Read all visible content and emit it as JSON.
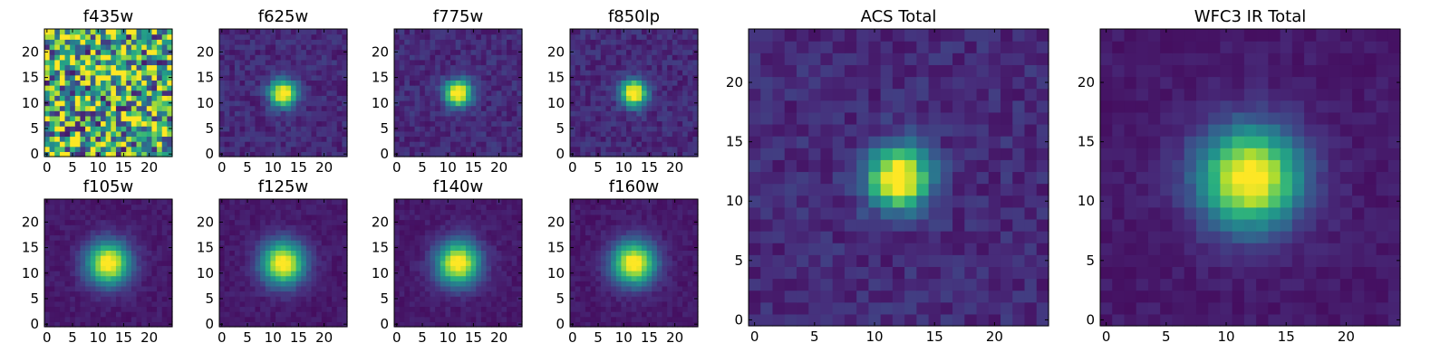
{
  "figure": {
    "colormap": "viridis",
    "colormap_stops": [
      "#440154",
      "#472d7b",
      "#3b528b",
      "#2c728e",
      "#21918c",
      "#28ae80",
      "#5ec962",
      "#addc30",
      "#fde725"
    ]
  },
  "chart_data": [
    {
      "type": "heatmap",
      "title": "f435w",
      "image_size": [
        25,
        25
      ],
      "morphology": "noise",
      "peak_center": [
        12,
        12
      ],
      "xlim": [
        -0.5,
        24.5
      ],
      "ylim": [
        -0.5,
        24.5
      ],
      "xticks": [
        0,
        5,
        10,
        15,
        20
      ],
      "yticks": [
        0,
        5,
        10,
        15,
        20
      ],
      "grid": false
    },
    {
      "type": "heatmap",
      "title": "f625w",
      "image_size": [
        25,
        25
      ],
      "morphology": "compact-source",
      "peak_center": [
        12,
        12
      ],
      "xlim": [
        -0.5,
        24.5
      ],
      "ylim": [
        -0.5,
        24.5
      ],
      "xticks": [
        0,
        5,
        10,
        15,
        20
      ],
      "yticks": [
        0,
        5,
        10,
        15,
        20
      ],
      "grid": false
    },
    {
      "type": "heatmap",
      "title": "f775w",
      "image_size": [
        25,
        25
      ],
      "morphology": "compact-source",
      "peak_center": [
        12,
        12
      ],
      "xlim": [
        -0.5,
        24.5
      ],
      "ylim": [
        -0.5,
        24.5
      ],
      "xticks": [
        0,
        5,
        10,
        15,
        20
      ],
      "yticks": [
        0,
        5,
        10,
        15,
        20
      ],
      "grid": false
    },
    {
      "type": "heatmap",
      "title": "f850lp",
      "image_size": [
        25,
        25
      ],
      "morphology": "compact-source",
      "peak_center": [
        12,
        12
      ],
      "xlim": [
        -0.5,
        24.5
      ],
      "ylim": [
        -0.5,
        24.5
      ],
      "xticks": [
        0,
        5,
        10,
        15,
        20
      ],
      "yticks": [
        0,
        5,
        10,
        15,
        20
      ],
      "grid": false
    },
    {
      "type": "heatmap",
      "title": "f105w",
      "image_size": [
        25,
        25
      ],
      "morphology": "extended-source",
      "peak_center": [
        12,
        12
      ],
      "xlim": [
        -0.5,
        24.5
      ],
      "ylim": [
        -0.5,
        24.5
      ],
      "xticks": [
        0,
        5,
        10,
        15,
        20
      ],
      "yticks": [
        0,
        5,
        10,
        15,
        20
      ],
      "grid": false
    },
    {
      "type": "heatmap",
      "title": "f125w",
      "image_size": [
        25,
        25
      ],
      "morphology": "extended-source",
      "peak_center": [
        12,
        12
      ],
      "xlim": [
        -0.5,
        24.5
      ],
      "ylim": [
        -0.5,
        24.5
      ],
      "xticks": [
        0,
        5,
        10,
        15,
        20
      ],
      "yticks": [
        0,
        5,
        10,
        15,
        20
      ],
      "grid": false
    },
    {
      "type": "heatmap",
      "title": "f140w",
      "image_size": [
        25,
        25
      ],
      "morphology": "extended-source",
      "peak_center": [
        12,
        12
      ],
      "xlim": [
        -0.5,
        24.5
      ],
      "ylim": [
        -0.5,
        24.5
      ],
      "xticks": [
        0,
        5,
        10,
        15,
        20
      ],
      "yticks": [
        0,
        5,
        10,
        15,
        20
      ],
      "grid": false
    },
    {
      "type": "heatmap",
      "title": "f160w",
      "image_size": [
        25,
        25
      ],
      "morphology": "extended-source",
      "peak_center": [
        12,
        12
      ],
      "xlim": [
        -0.5,
        24.5
      ],
      "ylim": [
        -0.5,
        24.5
      ],
      "xticks": [
        0,
        5,
        10,
        15,
        20
      ],
      "yticks": [
        0,
        5,
        10,
        15,
        20
      ],
      "grid": false
    },
    {
      "type": "heatmap",
      "title": "ACS Total",
      "image_size": [
        25,
        25
      ],
      "morphology": "compact-source",
      "peak_center": [
        12,
        12
      ],
      "xlim": [
        -0.5,
        24.5
      ],
      "ylim": [
        -0.5,
        24.5
      ],
      "xticks": [
        0,
        5,
        10,
        15,
        20
      ],
      "yticks": [
        0,
        5,
        10,
        15,
        20
      ],
      "grid": false
    },
    {
      "type": "heatmap",
      "title": "WFC3 IR Total",
      "image_size": [
        25,
        25
      ],
      "morphology": "extended-source",
      "peak_center": [
        12,
        12
      ],
      "xlim": [
        -0.5,
        24.5
      ],
      "ylim": [
        -0.5,
        24.5
      ],
      "xticks": [
        0,
        5,
        10,
        15,
        20
      ],
      "yticks": [
        0,
        5,
        10,
        15,
        20
      ],
      "grid": false
    }
  ]
}
